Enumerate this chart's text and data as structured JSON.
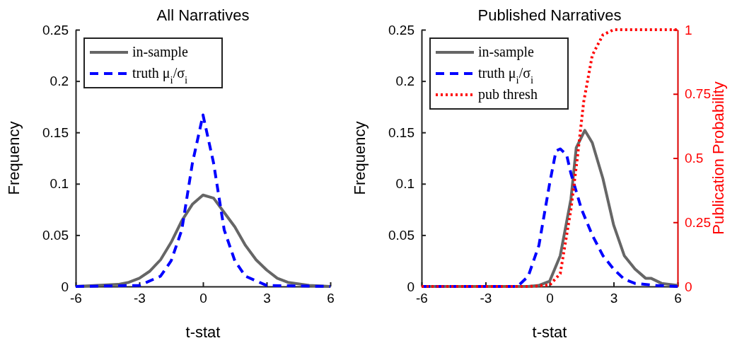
{
  "chart_data": [
    {
      "type": "line",
      "title": "All Narratives",
      "xlabel": "t-stat",
      "ylabel": "Frequency",
      "xlim": [
        -6,
        6
      ],
      "xticks": [
        -6,
        -3,
        0,
        3,
        6
      ],
      "ylim": [
        0,
        0.25
      ],
      "yticks": [
        0,
        0.05,
        0.1,
        0.15,
        0.2,
        0.25
      ],
      "grid": false,
      "legend": "top left",
      "marker": "none",
      "series": [
        {
          "name": "in-sample",
          "color": "#666666",
          "line_style": "solid",
          "x": [
            -6,
            -5,
            -4,
            -3.5,
            -3,
            -2.5,
            -2,
            -1.5,
            -1,
            -0.5,
            0,
            0.5,
            1,
            1.5,
            2,
            2.5,
            3,
            3.5,
            4,
            5,
            6
          ],
          "values": [
            0,
            0.001,
            0.002,
            0.004,
            0.008,
            0.015,
            0.026,
            0.043,
            0.064,
            0.08,
            0.089,
            0.086,
            0.072,
            0.058,
            0.04,
            0.026,
            0.016,
            0.008,
            0.004,
            0.001,
            0
          ]
        },
        {
          "name": "truth μ$_{i}$/σ$_{i}$",
          "color": "#0000ff",
          "line_style": "dashed",
          "x": [
            -6,
            -3,
            -2,
            -1.5,
            -1,
            -0.5,
            0,
            0.5,
            1,
            1.5,
            2,
            3,
            6
          ],
          "values": [
            0,
            0.001,
            0.01,
            0.025,
            0.055,
            0.12,
            0.167,
            0.12,
            0.055,
            0.025,
            0.01,
            0.001,
            0
          ]
        }
      ]
    },
    {
      "type": "line",
      "title": "Published Narratives",
      "xlabel": "t-stat",
      "ylabel": "Frequency",
      "y2label": "Publication Probability",
      "xlim": [
        -6,
        6
      ],
      "xticks": [
        -6,
        -3,
        0,
        3,
        6
      ],
      "ylim": [
        0,
        0.25
      ],
      "yticks": [
        0,
        0.05,
        0.1,
        0.15,
        0.2,
        0.25
      ],
      "y2lim": [
        0,
        1
      ],
      "y2ticks": [
        0,
        0.25,
        0.5,
        0.75,
        1
      ],
      "grid": false,
      "legend": "top left",
      "marker": "none",
      "series": [
        {
          "name": "in-sample",
          "color": "#666666",
          "line_style": "solid",
          "x": [
            -6,
            -1,
            -0.5,
            0,
            0.5,
            1,
            1.25,
            1.65,
            2,
            2.5,
            3,
            3.5,
            4,
            4.5,
            4.75,
            5.25,
            6
          ],
          "values": [
            0,
            0,
            0.001,
            0.005,
            0.03,
            0.085,
            0.135,
            0.152,
            0.14,
            0.105,
            0.06,
            0.03,
            0.017,
            0.008,
            0.008,
            0.003,
            0.001
          ]
        },
        {
          "name": "truth μ$_{i}$/σ$_{i}$",
          "color": "#0000ff",
          "line_style": "dashed",
          "x": [
            -6,
            -1.5,
            -1,
            -0.5,
            0,
            0.3,
            0.5,
            0.8,
            1,
            1.5,
            2,
            2.5,
            3,
            3.5,
            4,
            5,
            6
          ],
          "values": [
            0,
            0,
            0.01,
            0.04,
            0.1,
            0.132,
            0.134,
            0.128,
            0.11,
            0.075,
            0.05,
            0.03,
            0.017,
            0.007,
            0.003,
            0.001,
            0
          ]
        },
        {
          "name": "pub thresh",
          "color": "#ff0000",
          "line_style": "dotted",
          "axis": "y2",
          "x": [
            -6,
            -1,
            0,
            0.5,
            1,
            1.3,
            1.6,
            2,
            2.5,
            3,
            6
          ],
          "values": [
            0,
            0,
            0.005,
            0.05,
            0.3,
            0.5,
            0.72,
            0.9,
            0.98,
            1,
            1
          ]
        }
      ]
    }
  ]
}
